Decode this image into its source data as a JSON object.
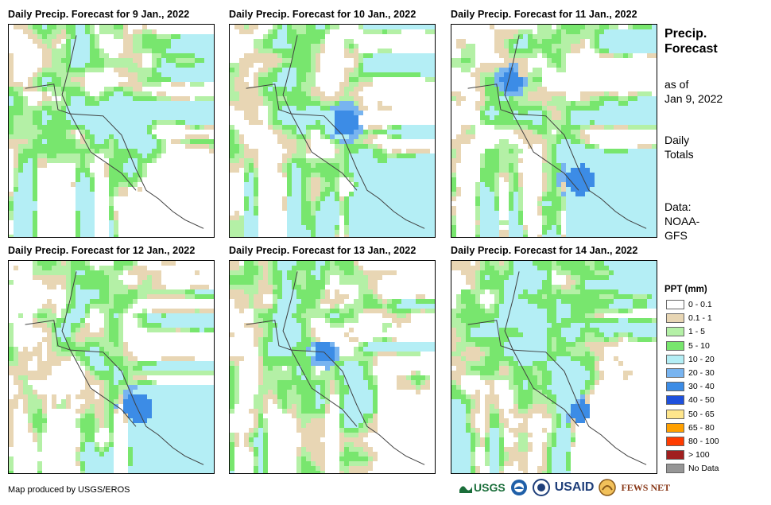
{
  "panels": [
    {
      "title": "Daily Precip. Forecast for 9 Jan., 2022"
    },
    {
      "title": "Daily Precip. Forecast for 10 Jan., 2022"
    },
    {
      "title": "Daily Precip. Forecast for 11 Jan., 2022"
    },
    {
      "title": "Daily Precip. Forecast for 12 Jan., 2022"
    },
    {
      "title": "Daily Precip. Forecast for 13 Jan., 2022"
    },
    {
      "title": "Daily Precip. Forecast for 14 Jan., 2022"
    }
  ],
  "side": {
    "title_line1": "Precip.",
    "title_line2": "Forecast",
    "asof_line1": "as of",
    "asof_line2": "Jan 9, 2022",
    "totals_line1": "Daily",
    "totals_line2": "Totals",
    "data_line1": "Data:",
    "data_line2": "NOAA-",
    "data_line3": "GFS"
  },
  "legend": {
    "title": "PPT (mm)",
    "items": [
      {
        "label": "0 - 0.1",
        "color": "#ffffff"
      },
      {
        "label": "0.1 - 1",
        "color": "#e8d6b4"
      },
      {
        "label": "1 - 5",
        "color": "#b4f0a6"
      },
      {
        "label": "5 - 10",
        "color": "#78e66e"
      },
      {
        "label": "10 - 20",
        "color": "#b4eef5"
      },
      {
        "label": "20 - 30",
        "color": "#78b4f0"
      },
      {
        "label": "30 - 40",
        "color": "#3c8ce6"
      },
      {
        "label": "40 - 50",
        "color": "#1e50dc"
      },
      {
        "label": "50 - 65",
        "color": "#ffe68c"
      },
      {
        "label": "65 - 80",
        "color": "#ffa000"
      },
      {
        "label": "80 - 100",
        "color": "#ff3c00"
      },
      {
        "label": "> 100",
        "color": "#a01e1e"
      },
      {
        "label": "No Data",
        "color": "#969696"
      }
    ]
  },
  "footer": {
    "credit": "Map produced by USGS/EROS",
    "logos": [
      "USGS",
      "NOAA",
      "USAID",
      "FEWS NET"
    ]
  }
}
